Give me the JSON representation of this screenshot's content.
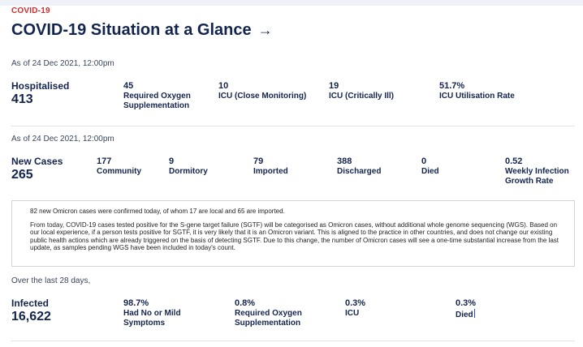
{
  "eyebrow": "COVID-19",
  "title": "COVID-19 Situation at a Glance",
  "title_arrow": "→",
  "hospital": {
    "as_of": "As of 24 Dec 2021, 12:00pm",
    "main_label": "Hospitalised",
    "main_value": "413",
    "stats": [
      {
        "value": "45",
        "label": "Required Oxygen Supplementation"
      },
      {
        "value": "10",
        "label": "ICU (Close Monitoring)"
      },
      {
        "value": "19",
        "label": "ICU (Critically Ill)"
      },
      {
        "value": "51.7%",
        "label": "ICU Utilisation Rate"
      }
    ]
  },
  "cases": {
    "as_of": "As of 24 Dec 2021, 12:00pm",
    "main_label": "New Cases",
    "main_value": "265",
    "stats": [
      {
        "value": "177",
        "label": "Community"
      },
      {
        "value": "9",
        "label": "Dormitory"
      },
      {
        "value": "79",
        "label": "Imported"
      },
      {
        "value": "388",
        "label": "Discharged"
      },
      {
        "value": "0",
        "label": "Died"
      },
      {
        "value": "0.52",
        "label": "Weekly Infection Growth Rate"
      }
    ]
  },
  "note": {
    "line1": "82 new Omicron cases were confirmed today, of whom 17 are local and 65 are imported.",
    "line2": "From today, COVID-19 cases tested positive for the S-gene target failure (SGTF) will be categorised as Omicron cases, without additional whole genome sequencing (WGS). Based on our local experience, if a person tests positive for SGTF, it is very likely that it is an Omicron variant. This is aligned to the practice in other countries, and does not change our existing public health actions which are already triggered on the basis of detecting SGTF. Due to this change, the number of Omicron cases will see a one-time substantial increase from the last update, as samples pending WGS have been included in today's count."
  },
  "infected": {
    "period": "Over the last 28 days,",
    "main_label": "Infected",
    "main_value": "16,622",
    "stats": [
      {
        "value": "98.7%",
        "label": "Had No or Mild Symptoms"
      },
      {
        "value": "0.8%",
        "label": "Required Oxygen Supplementation"
      },
      {
        "value": "0.3%",
        "label": "ICU"
      },
      {
        "value": "0.3%",
        "label": "Died"
      }
    ]
  },
  "colors": {
    "accent_red": "#d22d2d",
    "navy": "#13254f"
  }
}
